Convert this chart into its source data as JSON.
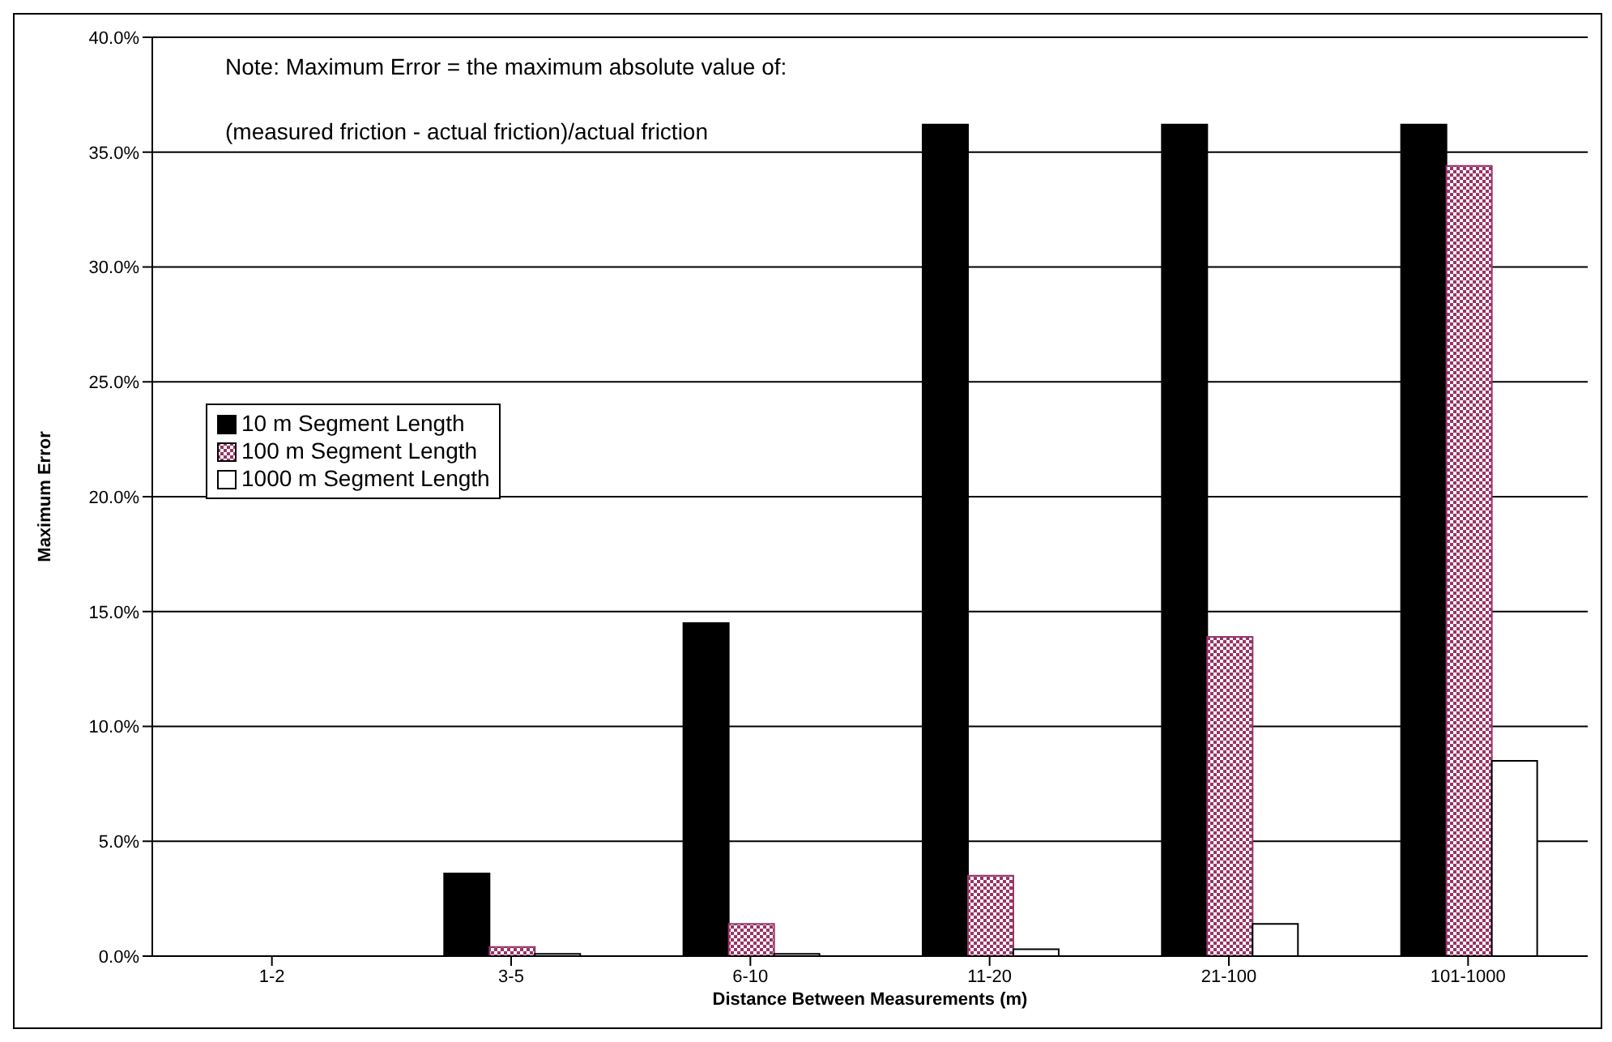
{
  "chart_data": {
    "type": "bar",
    "xlabel": "Distance Between Measurements (m)",
    "ylabel": "Maximum Error",
    "annotations": [
      "Note:  Maximum Error = the maximum absolute value of:",
      "(measured friction - actual friction)/actual friction"
    ],
    "categories": [
      "1-2",
      "3-5",
      "6-10",
      "11-20",
      "21-100",
      "101-1000"
    ],
    "series": [
      {
        "name": "10 m Segment Length",
        "color": "#000000",
        "values": [
          0,
          3.6,
          14.5,
          36.2,
          36.2,
          36.2
        ]
      },
      {
        "name": "100 m Segment Length",
        "color": "#993366",
        "values": [
          0,
          0.4,
          1.4,
          3.5,
          13.9,
          34.4
        ]
      },
      {
        "name": "1000 m Segment Length",
        "color": "#ffffff",
        "values": [
          0,
          0.1,
          0.1,
          0.3,
          1.4,
          8.5
        ]
      }
    ],
    "ylim": [
      0,
      40
    ],
    "yticks": [
      {
        "value": 0,
        "label": "0.0%"
      },
      {
        "value": 5,
        "label": "5.0%"
      },
      {
        "value": 10,
        "label": "10.0%"
      },
      {
        "value": 15,
        "label": "15.0%"
      },
      {
        "value": 20,
        "label": "20.0%"
      },
      {
        "value": 25,
        "label": "25.0%"
      },
      {
        "value": 30,
        "label": "30.0%"
      },
      {
        "value": 35,
        "label": "35.0%"
      },
      {
        "value": 40,
        "label": "40.0%"
      }
    ],
    "grid": "y",
    "legend": "left"
  }
}
